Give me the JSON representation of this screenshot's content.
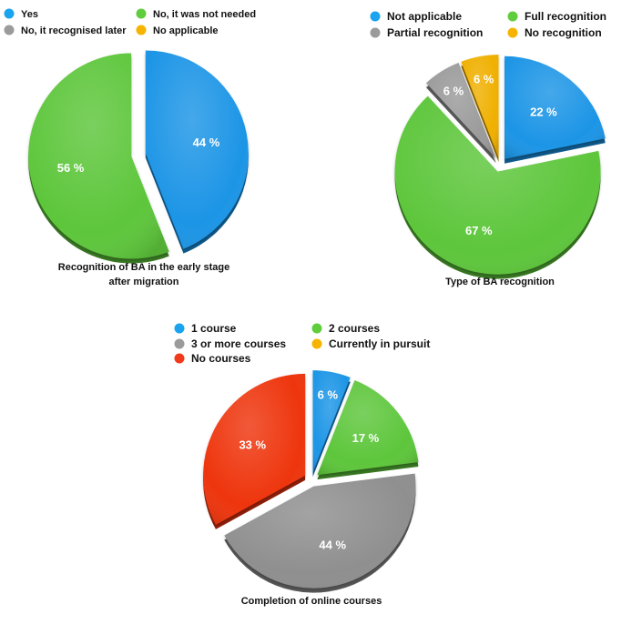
{
  "chart_data": [
    {
      "type": "pie",
      "title": "Recognition of BA in the early stage after migration",
      "title_lines": [
        "Recognition of BA in the early stage",
        "after migration"
      ],
      "legend": [
        "Yes",
        "No, it recognised later",
        "No, it was not needed",
        "No applicable"
      ],
      "legend_colors": [
        "#1aa3ee",
        "#9b9b9b",
        "#5fcd3c",
        "#f6b400"
      ],
      "slices": [
        {
          "label": "Yes",
          "value": 44,
          "text": "44 %",
          "color": "#1a95e6"
        },
        {
          "label": "No, it was not needed",
          "value": 56,
          "text": "56 %",
          "color": "#5dc63a"
        }
      ]
    },
    {
      "type": "pie",
      "title": "Type of BA recognition",
      "title_lines": [
        "Type of BA recognition"
      ],
      "legend": [
        "Not applicable",
        "Partial recognition",
        "Full recognition",
        "No recognition"
      ],
      "legend_colors": [
        "#1aa3ee",
        "#9b9b9b",
        "#5fcd3c",
        "#f6b400"
      ],
      "slices": [
        {
          "label": "Not applicable",
          "value": 22,
          "text": "22 %",
          "color": "#1a95e6"
        },
        {
          "label": "Full recognition",
          "value": 67,
          "text": "67 %",
          "color": "#5dc63a"
        },
        {
          "label": "Partial recognition",
          "value": 6,
          "text": "6 %",
          "color": "#9a9a9a"
        },
        {
          "label": "No recognition",
          "value": 6,
          "text": "6 %",
          "color": "#f0b000"
        }
      ]
    },
    {
      "type": "pie",
      "title": "Completion of online courses",
      "title_lines": [
        "Completion of online courses"
      ],
      "legend": [
        "1 course",
        "3 or more courses",
        "No courses",
        "2 courses",
        "Currently in pursuit"
      ],
      "legend_colors": [
        "#1aa3ee",
        "#9b9b9b",
        "#f03a1a",
        "#5fcd3c",
        "#f6b400"
      ],
      "slices": [
        {
          "label": "1 course",
          "value": 6,
          "text": "6 %",
          "color": "#1a95e6"
        },
        {
          "label": "2 courses",
          "value": 17,
          "text": "17 %",
          "color": "#5dc63a"
        },
        {
          "label": "3 or more courses",
          "value": 44,
          "text": "44 %",
          "color": "#8f8f8f"
        },
        {
          "label": "No courses",
          "value": 33,
          "text": "33 %",
          "color": "#ee3410"
        }
      ]
    }
  ]
}
